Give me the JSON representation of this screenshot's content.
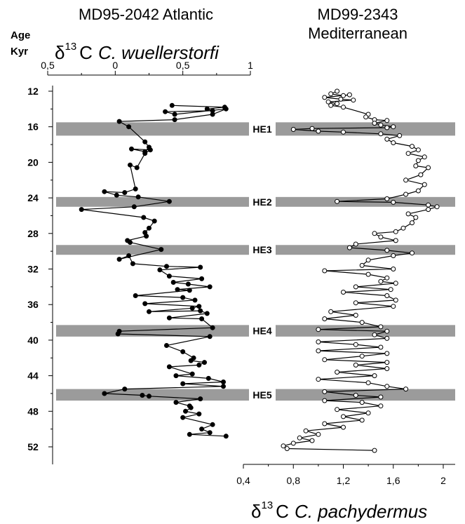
{
  "chart_data": [
    {
      "type": "line",
      "title": "MD95-2042 Atlantic",
      "y_axis_label_line1": "Age",
      "y_axis_label_line2": "Kyr",
      "x_axis_label_delta": "δ",
      "x_axis_label_superscript": "13",
      "x_axis_label_c": "C",
      "x_axis_label_species": "C. wuellerstorfi",
      "x_ticks": [
        "0,5",
        "0",
        "0,5",
        "1"
      ],
      "y_ticks": [
        "12",
        "16",
        "20",
        "24",
        "28",
        "32",
        "36",
        "40",
        "44",
        "48",
        "52"
      ],
      "ylim": [
        11,
        54
      ],
      "series": [
        {
          "marker": "filled-circle",
          "color": "#000000",
          "points": [
            [
              0.42,
              13.6
            ],
            [
              0.81,
              13.8
            ],
            [
              0.68,
              14.0
            ],
            [
              0.72,
              14.2
            ],
            [
              0.37,
              14.3
            ],
            [
              0.44,
              14.6
            ],
            [
              0.82,
              14.0
            ],
            [
              0.72,
              14.6
            ],
            [
              0.44,
              15.2
            ],
            [
              0.03,
              15.4
            ],
            [
              0.1,
              16.0
            ],
            [
              0.22,
              17.7
            ],
            [
              0.25,
              18.3
            ],
            [
              0.22,
              18.8
            ],
            [
              0.12,
              18.5
            ],
            [
              0.26,
              18.6
            ],
            [
              0.22,
              19.0
            ],
            [
              0.16,
              20.6
            ],
            [
              0.11,
              20.3
            ],
            [
              0.15,
              23.0
            ],
            [
              0.07,
              23.4
            ],
            [
              -0.08,
              23.3
            ],
            [
              0.01,
              23.7
            ],
            [
              0.17,
              23.9
            ],
            [
              0.4,
              24.4
            ],
            [
              0.14,
              25.0
            ],
            [
              -0.25,
              25.3
            ],
            [
              0.21,
              26.2
            ],
            [
              0.29,
              26.6
            ],
            [
              0.25,
              27.4
            ],
            [
              0.22,
              27.9
            ],
            [
              0.23,
              28.3
            ],
            [
              0.09,
              28.8
            ],
            [
              0.11,
              29.0
            ],
            [
              0.34,
              29.8
            ],
            [
              0.03,
              30.9
            ],
            [
              0.1,
              30.5
            ],
            [
              0.13,
              31.4
            ],
            [
              0.38,
              31.7
            ],
            [
              0.63,
              31.8
            ],
            [
              0.33,
              32.1
            ],
            [
              0.4,
              32.8
            ],
            [
              0.64,
              33.1
            ],
            [
              0.43,
              33.5
            ],
            [
              0.54,
              33.7
            ],
            [
              0.7,
              34.0
            ],
            [
              0.46,
              34.3
            ],
            [
              0.55,
              34.4
            ],
            [
              0.15,
              35.0
            ],
            [
              0.5,
              35.2
            ],
            [
              0.59,
              35.5
            ],
            [
              0.22,
              35.9
            ],
            [
              0.62,
              36.2
            ],
            [
              0.57,
              36.4
            ],
            [
              0.25,
              36.8
            ],
            [
              0.63,
              36.7
            ],
            [
              0.68,
              37.0
            ],
            [
              0.4,
              37.5
            ],
            [
              0.64,
              37.6
            ],
            [
              0.72,
              38.6
            ],
            [
              0.03,
              39.0
            ],
            [
              0.02,
              39.3
            ],
            [
              0.7,
              39.6
            ],
            [
              0.38,
              40.6
            ],
            [
              0.5,
              41.3
            ],
            [
              0.58,
              42.0
            ],
            [
              0.56,
              42.3
            ],
            [
              0.66,
              42.5
            ],
            [
              0.62,
              42.8
            ],
            [
              0.4,
              43.0
            ],
            [
              0.57,
              43.8
            ],
            [
              0.45,
              44.0
            ],
            [
              0.69,
              44.3
            ],
            [
              0.8,
              44.7
            ],
            [
              0.5,
              44.9
            ],
            [
              0.8,
              45.2
            ],
            [
              0.07,
              45.5
            ],
            [
              -0.08,
              46.0
            ],
            [
              0.2,
              46.2
            ],
            [
              0.25,
              46.3
            ],
            [
              0.63,
              46.6
            ],
            [
              0.45,
              47.0
            ],
            [
              0.55,
              47.4
            ],
            [
              0.56,
              47.6
            ],
            [
              0.52,
              48.0
            ],
            [
              0.62,
              48.3
            ],
            [
              0.5,
              48.7
            ],
            [
              0.72,
              49.5
            ],
            [
              0.64,
              50.0
            ],
            [
              0.7,
              50.4
            ],
            [
              0.55,
              50.6
            ],
            [
              0.82,
              50.8
            ]
          ]
        }
      ]
    },
    {
      "type": "line",
      "title_line1": "MD99-2343",
      "title_line2": "Mediterranean",
      "x_axis_label_delta": "δ",
      "x_axis_label_superscript": "13",
      "x_axis_label_c": "C",
      "x_axis_label_species": "C. pachydermus",
      "x_ticks": [
        "0,4",
        "0,8",
        "1,2",
        "1,6",
        "2"
      ],
      "xlim": [
        0.4,
        2.1
      ],
      "series": [
        {
          "marker": "open-circle",
          "color": "#000000",
          "points": [
            [
              1.15,
              12.0
            ],
            [
              1.1,
              12.3
            ],
            [
              1.2,
              12.5
            ],
            [
              1.25,
              12.4
            ],
            [
              1.05,
              12.7
            ],
            [
              1.18,
              12.9
            ],
            [
              1.28,
              13.0
            ],
            [
              1.08,
              13.2
            ],
            [
              1.15,
              13.4
            ],
            [
              1.1,
              13.6
            ],
            [
              1.2,
              13.8
            ],
            [
              1.4,
              14.6
            ],
            [
              1.38,
              14.9
            ],
            [
              1.45,
              15.2
            ],
            [
              1.55,
              15.3
            ],
            [
              1.45,
              15.6
            ],
            [
              1.5,
              15.8
            ],
            [
              1.6,
              16.0
            ],
            [
              1.55,
              16.1
            ],
            [
              0.95,
              16.2
            ],
            [
              0.8,
              16.3
            ],
            [
              1.0,
              16.5
            ],
            [
              1.2,
              16.6
            ],
            [
              1.5,
              16.8
            ],
            [
              1.65,
              17.0
            ],
            [
              1.55,
              17.4
            ],
            [
              1.6,
              17.8
            ],
            [
              1.75,
              18.2
            ],
            [
              1.8,
              18.6
            ],
            [
              1.72,
              19.0
            ],
            [
              1.85,
              19.4
            ],
            [
              1.8,
              19.8
            ],
            [
              1.78,
              20.4
            ],
            [
              1.88,
              20.6
            ],
            [
              1.82,
              21.4
            ],
            [
              1.7,
              22.0
            ],
            [
              1.85,
              22.5
            ],
            [
              1.8,
              23.2
            ],
            [
              1.7,
              23.6
            ],
            [
              1.55,
              24.1
            ],
            [
              1.15,
              24.4
            ],
            [
              1.6,
              24.5
            ],
            [
              1.88,
              24.8
            ],
            [
              1.95,
              25.0
            ],
            [
              1.88,
              25.3
            ],
            [
              1.72,
              25.8
            ],
            [
              1.78,
              26.2
            ],
            [
              1.75,
              26.8
            ],
            [
              1.68,
              27.4
            ],
            [
              1.62,
              27.8
            ],
            [
              1.45,
              28.0
            ],
            [
              1.5,
              28.4
            ],
            [
              1.62,
              28.8
            ],
            [
              1.3,
              29.2
            ],
            [
              1.25,
              29.6
            ],
            [
              1.55,
              29.9
            ],
            [
              1.75,
              30.2
            ],
            [
              1.6,
              30.5
            ],
            [
              1.4,
              31.0
            ],
            [
              1.35,
              31.6
            ],
            [
              1.6,
              32.0
            ],
            [
              1.05,
              32.2
            ],
            [
              1.4,
              32.6
            ],
            [
              1.55,
              33.0
            ],
            [
              1.5,
              33.4
            ],
            [
              1.62,
              33.6
            ],
            [
              1.3,
              34.0
            ],
            [
              1.58,
              34.3
            ],
            [
              1.2,
              34.6
            ],
            [
              1.55,
              35.0
            ],
            [
              1.62,
              35.5
            ],
            [
              1.3,
              35.8
            ],
            [
              1.6,
              36.2
            ],
            [
              1.1,
              36.8
            ],
            [
              1.3,
              37.2
            ],
            [
              1.05,
              37.6
            ],
            [
              1.35,
              38.0
            ],
            [
              1.5,
              38.5
            ],
            [
              1.0,
              38.8
            ],
            [
              1.55,
              39.0
            ],
            [
              1.45,
              39.4
            ],
            [
              1.55,
              39.8
            ],
            [
              1.0,
              40.2
            ],
            [
              1.3,
              40.5
            ],
            [
              1.5,
              40.8
            ],
            [
              1.0,
              41.2
            ],
            [
              1.55,
              41.5
            ],
            [
              1.35,
              41.8
            ],
            [
              1.05,
              42.2
            ],
            [
              1.55,
              42.5
            ],
            [
              1.3,
              42.8
            ],
            [
              1.55,
              43.2
            ],
            [
              1.15,
              43.6
            ],
            [
              1.45,
              44.0
            ],
            [
              1.0,
              44.4
            ],
            [
              1.4,
              44.8
            ],
            [
              1.55,
              45.2
            ],
            [
              1.7,
              45.5
            ],
            [
              1.05,
              45.8
            ],
            [
              1.3,
              46.2
            ],
            [
              1.5,
              46.4
            ],
            [
              1.05,
              46.8
            ],
            [
              1.35,
              47.0
            ],
            [
              1.5,
              47.4
            ],
            [
              1.15,
              47.8
            ],
            [
              1.4,
              48.2
            ],
            [
              1.2,
              48.6
            ],
            [
              1.35,
              49.0
            ],
            [
              1.05,
              49.4
            ],
            [
              1.2,
              49.8
            ],
            [
              0.9,
              50.2
            ],
            [
              1.0,
              50.6
            ],
            [
              0.85,
              51.0
            ],
            [
              0.95,
              51.3
            ],
            [
              0.8,
              51.6
            ],
            [
              0.72,
              51.9
            ],
            [
              0.75,
              52.2
            ],
            [
              1.45,
              52.4
            ]
          ]
        }
      ]
    }
  ],
  "heinrich_events": [
    {
      "label": "HE1",
      "from": 15.5,
      "to": 17.0
    },
    {
      "label": "HE2",
      "from": 23.9,
      "to": 25.0
    },
    {
      "label": "HE3",
      "from": 29.3,
      "to": 30.4
    },
    {
      "label": "HE4",
      "from": 38.3,
      "to": 39.6
    },
    {
      "label": "HE5",
      "from": 45.5,
      "to": 46.8
    }
  ],
  "band_color": "#9b9b9b"
}
